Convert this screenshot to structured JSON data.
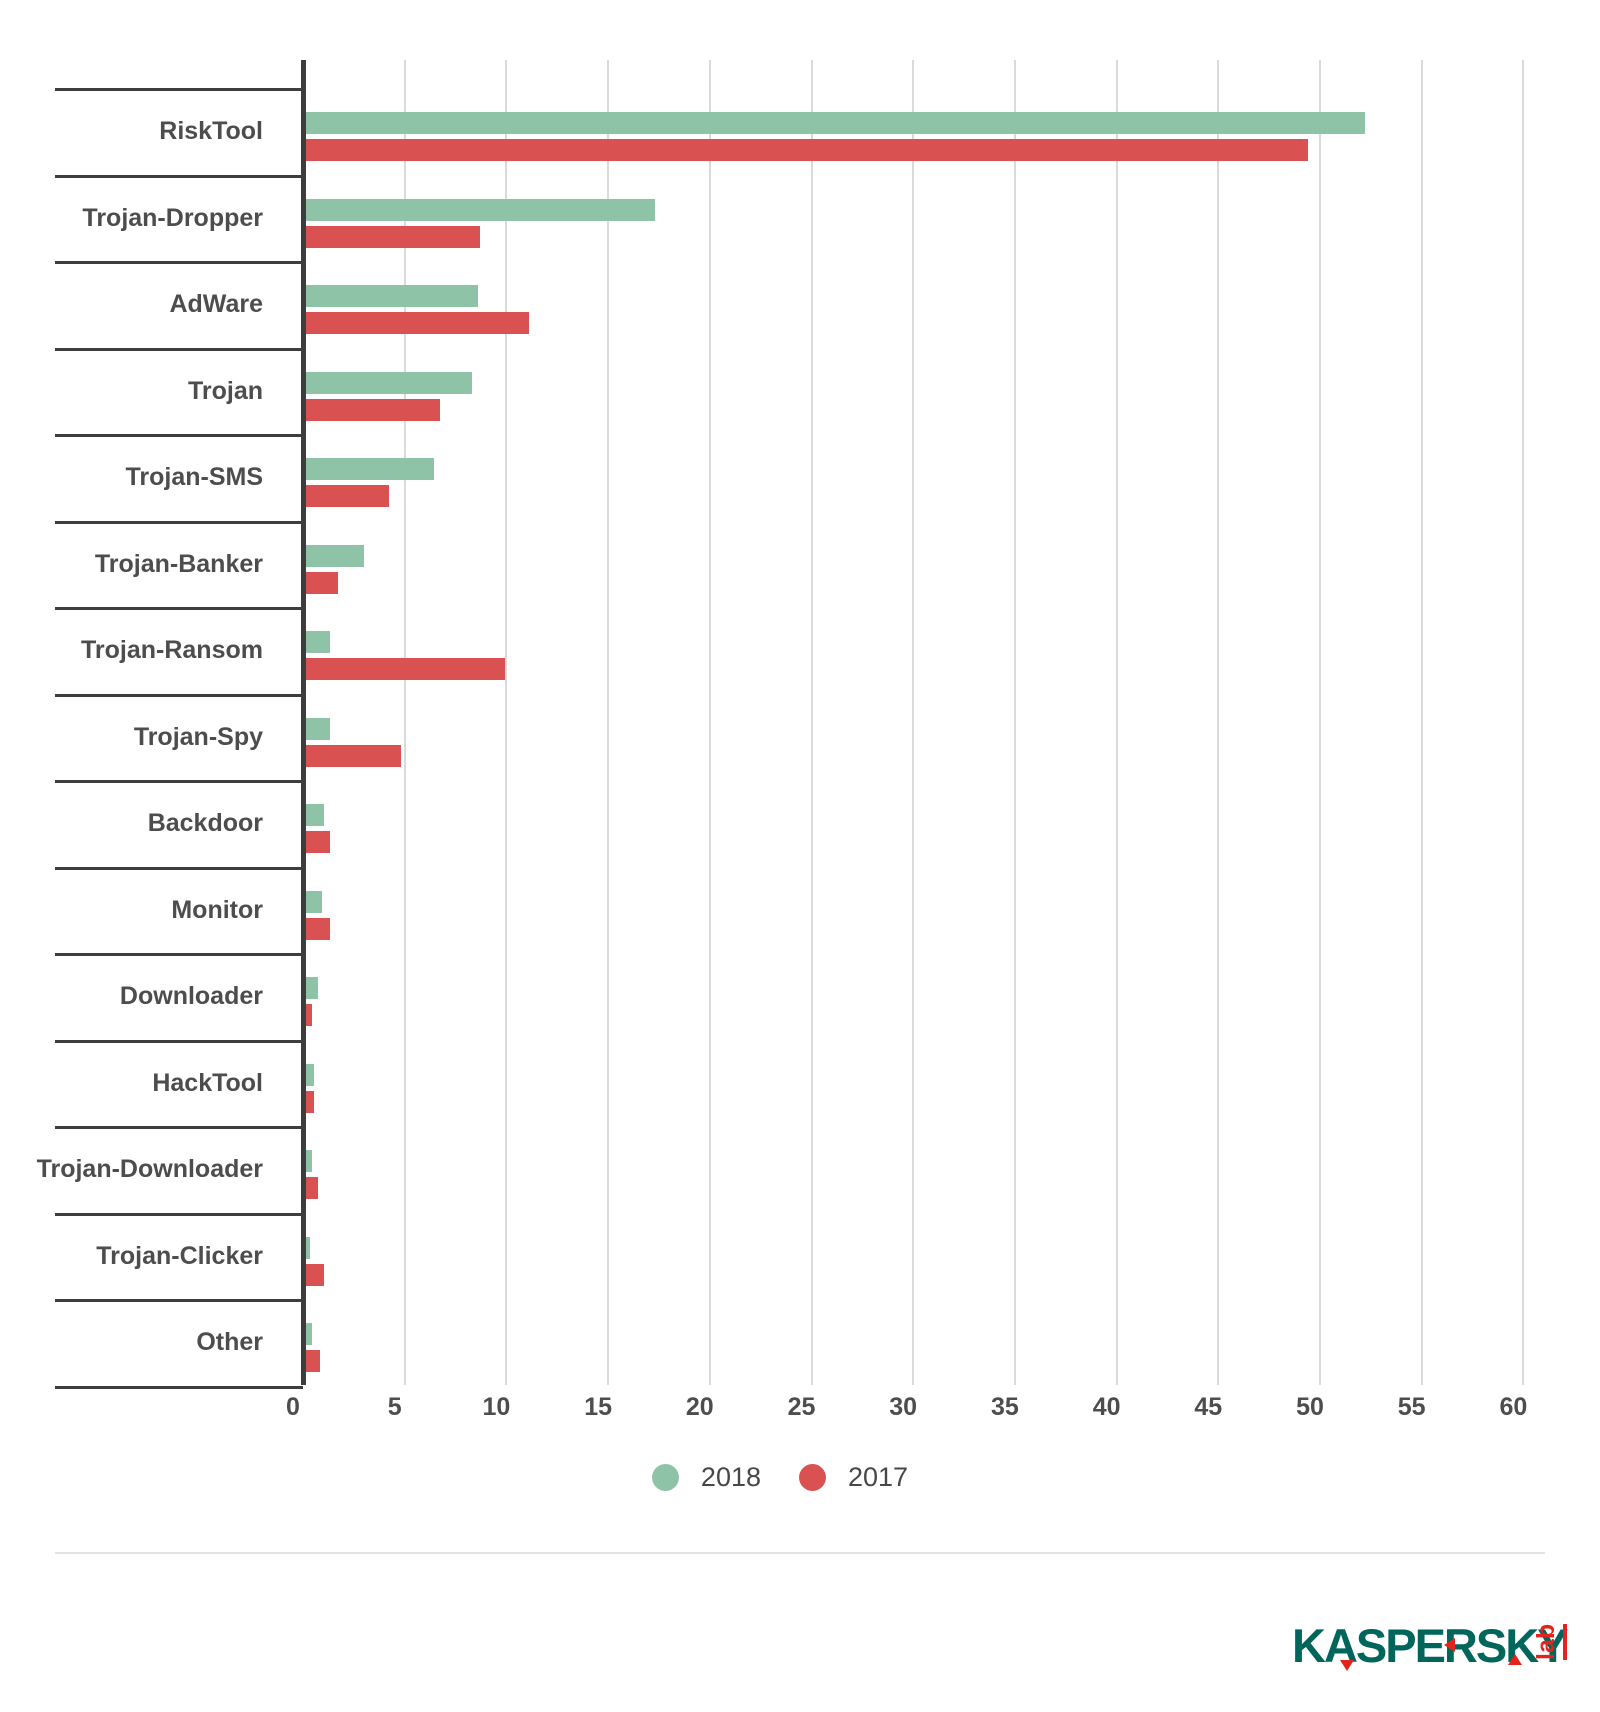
{
  "chart_data": {
    "type": "bar",
    "orientation": "horizontal",
    "title": "",
    "xlabel": "",
    "ylabel": "",
    "categories": [
      "RiskTool",
      "Trojan-Dropper",
      "AdWare",
      "Trojan",
      "Trojan-SMS",
      "Trojan-Banker",
      "Trojan-Ransom",
      "Trojan-Spy",
      "Backdoor",
      "Monitor",
      "Downloader",
      "HackTool",
      "Trojan-Downloader",
      "Trojan-Clicker",
      "Other"
    ],
    "series": [
      {
        "name": "2018",
        "color": "#8ec3a7",
        "values": [
          52.1,
          17.2,
          8.5,
          8.2,
          6.3,
          2.9,
          1.2,
          1.2,
          0.9,
          0.8,
          0.6,
          0.4,
          0.3,
          0.2,
          0.3
        ]
      },
      {
        "name": "2017",
        "color": "#d95151",
        "values": [
          49.3,
          8.6,
          11.0,
          6.6,
          4.1,
          1.6,
          9.8,
          4.7,
          1.2,
          1.2,
          0.3,
          0.4,
          0.6,
          0.9,
          0.7
        ]
      }
    ],
    "xlim": [
      0,
      60
    ],
    "xticks": [
      0,
      5,
      10,
      15,
      20,
      25,
      30,
      35,
      40,
      45,
      50,
      55,
      60
    ],
    "grid": true,
    "legend_position": "bottom-center"
  },
  "legend": {
    "items": [
      {
        "label": "2018",
        "color": "#8ec3a7"
      },
      {
        "label": "2017",
        "color": "#d95151"
      }
    ]
  },
  "colors": {
    "axis": "#3d3d3d",
    "gridline": "#dadada",
    "label_text": "#4d4d4d",
    "divider": "#e3e3e3",
    "logo_green": "#00665c",
    "logo_red": "#e3241d"
  },
  "branding": {
    "logo_text": "KASPERSKY",
    "logo_sub": "lab"
  }
}
